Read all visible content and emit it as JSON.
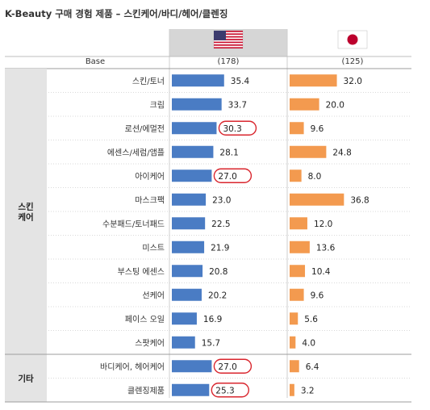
{
  "title": "K-Beauty 구매 경험 제품 – 스킨케어/바디/헤어/클렌징",
  "header": {
    "base_label": "Base",
    "us_base": "(178)",
    "jp_base": "(125)"
  },
  "groups": [
    {
      "label": "스킨\n케어",
      "start": 0,
      "end": 11
    },
    {
      "label": "기타",
      "start": 12,
      "end": 13
    }
  ],
  "colors": {
    "us_bar": "#4a7cc4",
    "jp_bar": "#f39a4f",
    "highlight": "#d9262e",
    "group_bg": "#e4e4e4",
    "us_header_bg": "#d6d6d6"
  },
  "chart_data": {
    "type": "bar",
    "orientation": "horizontal",
    "categories": [
      "스킨/토너",
      "크림",
      "로션/에멀전",
      "에센스/세럼/앰플",
      "아이케어",
      "마스크팩",
      "수분패드/토너패드",
      "미스트",
      "부스팅 에센스",
      "선케어",
      "페이스 오일",
      "스팟케어",
      "바디케어, 헤어케어",
      "클렌징제품"
    ],
    "series": [
      {
        "name": "US",
        "values": [
          35.4,
          33.7,
          30.3,
          28.1,
          27.0,
          23.0,
          22.5,
          21.9,
          20.8,
          20.2,
          16.9,
          15.7,
          27.0,
          25.3
        ],
        "highlighted": [
          2,
          4,
          12,
          13
        ]
      },
      {
        "name": "Japan",
        "values": [
          32.0,
          20.0,
          9.6,
          24.8,
          8.0,
          36.8,
          12.0,
          13.6,
          10.4,
          9.6,
          5.6,
          4.0,
          6.4,
          3.2
        ]
      }
    ],
    "xlim": [
      0,
      40
    ]
  }
}
